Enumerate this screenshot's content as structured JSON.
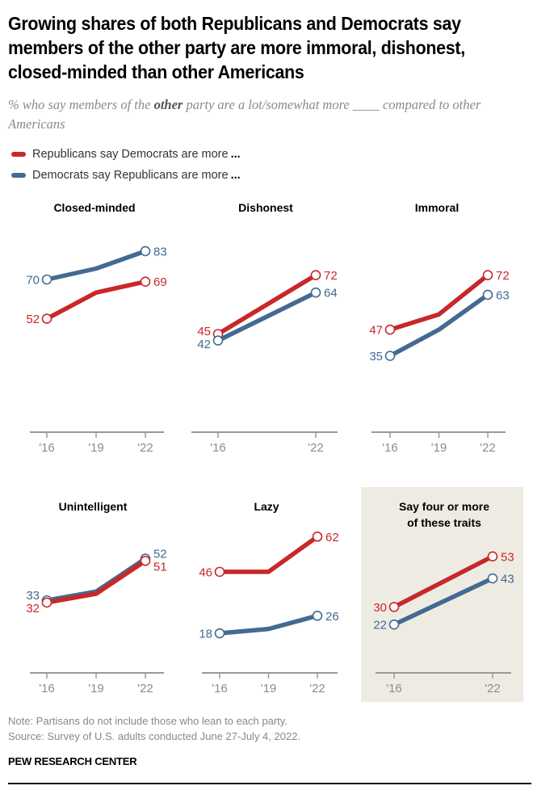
{
  "title": "Growing shares of both Republicans and Democrats say members of the other party are more immoral, dishonest, closed-minded than other Americans",
  "subtitle": {
    "before": "% who say members of the ",
    "bold": "other",
    "after": " party are a lot/somewhat more ____ compared to other Americans"
  },
  "legend": [
    {
      "label": "Republicans say Democrats are more",
      "suffix": "...",
      "color": "#c8282a"
    },
    {
      "label": "Democrats say Republicans are more",
      "suffix": "...",
      "color": "#436a92"
    }
  ],
  "colors": {
    "rep": "#c8282a",
    "dem": "#436a92",
    "axis": "#9a9a9a",
    "tick_label": "#8c8c8c",
    "highlight_bg": "#eeece2"
  },
  "chart_data": [
    {
      "type": "line",
      "title": "Closed-minded",
      "highlight": false,
      "x": [
        "'16",
        "'19",
        "'22"
      ],
      "ylim": [
        0,
        100
      ],
      "series": [
        {
          "name": "Republicans say Democrats are more",
          "key": "rep",
          "values": [
            52,
            64,
            69
          ],
          "labels": [
            "52",
            null,
            "69"
          ]
        },
        {
          "name": "Democrats say Republicans are more",
          "key": "dem",
          "values": [
            70,
            75,
            83
          ],
          "labels": [
            "70",
            null,
            "83"
          ]
        }
      ]
    },
    {
      "type": "line",
      "title": "Dishonest",
      "highlight": false,
      "x": [
        "'16",
        "'22"
      ],
      "ylim": [
        0,
        100
      ],
      "series": [
        {
          "name": "Republicans say Democrats are more",
          "key": "rep",
          "values": [
            45,
            72
          ],
          "labels": [
            "45",
            "72"
          ]
        },
        {
          "name": "Democrats say Republicans are more",
          "key": "dem",
          "values": [
            42,
            64
          ],
          "labels": [
            "42",
            "64"
          ]
        }
      ]
    },
    {
      "type": "line",
      "title": "Immoral",
      "highlight": false,
      "x": [
        "'16",
        "'19",
        "'22"
      ],
      "ylim": [
        0,
        100
      ],
      "series": [
        {
          "name": "Republicans say Democrats are more",
          "key": "rep",
          "values": [
            47,
            54,
            72
          ],
          "labels": [
            "47",
            null,
            "72"
          ]
        },
        {
          "name": "Democrats say Republicans are more",
          "key": "dem",
          "values": [
            35,
            47,
            63
          ],
          "labels": [
            "35",
            null,
            "63"
          ]
        }
      ]
    },
    {
      "type": "line",
      "title": "Unintelligent",
      "highlight": false,
      "x": [
        "'16",
        "'19",
        "'22"
      ],
      "ylim": [
        0,
        100
      ],
      "series": [
        {
          "name": "Democrats say Republicans are more",
          "key": "dem",
          "values": [
            33,
            37,
            52
          ],
          "labels": [
            "33",
            null,
            "52"
          ]
        },
        {
          "name": "Republicans say Democrats are more",
          "key": "rep",
          "values": [
            32,
            36,
            51
          ],
          "labels": [
            "32",
            null,
            "51"
          ]
        }
      ]
    },
    {
      "type": "line",
      "title": "Lazy",
      "highlight": false,
      "x": [
        "'16",
        "'19",
        "'22"
      ],
      "ylim": [
        0,
        100
      ],
      "series": [
        {
          "name": "Republicans say Democrats are more",
          "key": "rep",
          "values": [
            46,
            46,
            62
          ],
          "labels": [
            "46",
            null,
            "62"
          ]
        },
        {
          "name": "Democrats say Republicans are more",
          "key": "dem",
          "values": [
            18,
            20,
            26
          ],
          "labels": [
            "18",
            null,
            "26"
          ]
        }
      ]
    },
    {
      "type": "line",
      "title": "Say four or more of these traits",
      "title_lines": [
        "Say four or more",
        "of these traits"
      ],
      "highlight": true,
      "x": [
        "'16",
        "'22"
      ],
      "ylim": [
        0,
        100
      ],
      "series": [
        {
          "name": "Republicans say Democrats are more",
          "key": "rep",
          "values": [
            30,
            53
          ],
          "labels": [
            "30",
            "53"
          ]
        },
        {
          "name": "Democrats say Republicans are more",
          "key": "dem",
          "values": [
            22,
            43
          ],
          "labels": [
            "22",
            "43"
          ]
        }
      ]
    }
  ],
  "note": "Note: Partisans do not include those who lean to each party.",
  "source": "Source: Survey of U.S. adults conducted June 27-July 4, 2022.",
  "brand": "PEW RESEARCH CENTER"
}
